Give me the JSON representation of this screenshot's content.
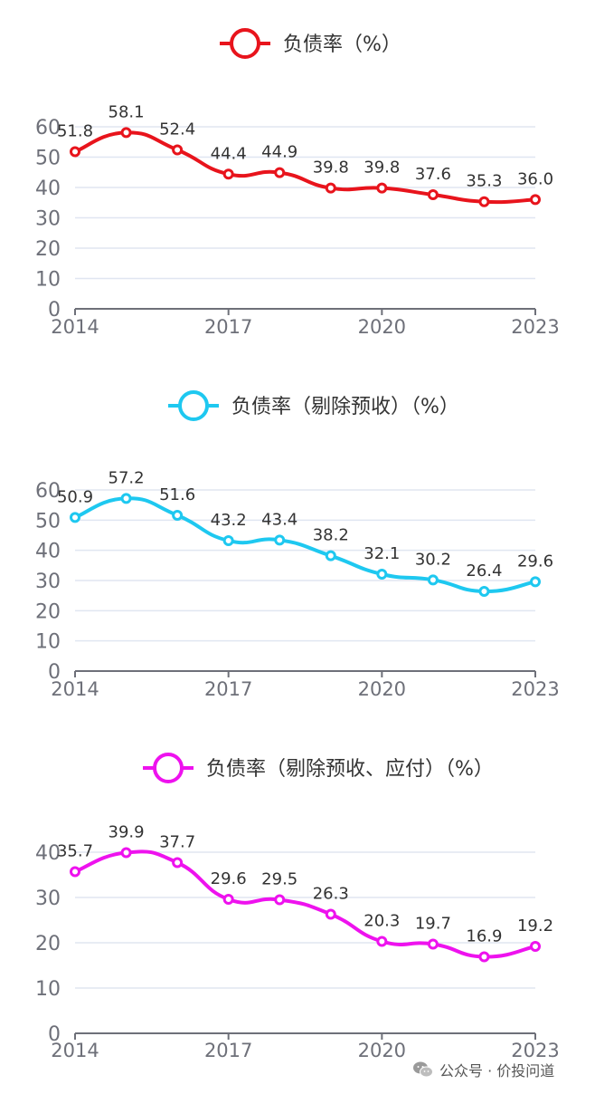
{
  "chart_data": [
    {
      "type": "line",
      "legend": "负债率（%）",
      "color": "#e8141c",
      "categories": [
        "2014",
        "2015",
        "2016",
        "2017",
        "2018",
        "2019",
        "2020",
        "2021",
        "2022",
        "2023"
      ],
      "x_tick_labels": [
        "2014",
        "2017",
        "2020",
        "2023"
      ],
      "values": [
        51.8,
        58.1,
        52.4,
        44.4,
        44.9,
        39.8,
        39.8,
        37.6,
        35.3,
        36.0
      ],
      "value_labels": [
        "51.8",
        "58.1",
        "52.4",
        "44.4",
        "44.9",
        "39.8",
        "39.8",
        "37.6",
        "35.3",
        "36.0"
      ],
      "y_ticks": [
        "0",
        "10",
        "20",
        "30",
        "40",
        "50",
        "60"
      ],
      "ylim": [
        0,
        60
      ],
      "smooth": true
    },
    {
      "type": "line",
      "legend": "负债率（剔除预收）（%）",
      "color": "#1ec8f0",
      "categories": [
        "2014",
        "2015",
        "2016",
        "2017",
        "2018",
        "2019",
        "2020",
        "2021",
        "2022",
        "2023"
      ],
      "x_tick_labels": [
        "2014",
        "2017",
        "2020",
        "2023"
      ],
      "values": [
        50.9,
        57.2,
        51.6,
        43.2,
        43.4,
        38.2,
        32.1,
        30.2,
        26.4,
        29.6
      ],
      "value_labels": [
        "50.9",
        "57.2",
        "51.6",
        "43.2",
        "43.4",
        "38.2",
        "32.1",
        "30.2",
        "26.4",
        "29.6"
      ],
      "y_ticks": [
        "0",
        "10",
        "20",
        "30",
        "40",
        "50",
        "60"
      ],
      "ylim": [
        0,
        60
      ],
      "smooth": true
    },
    {
      "type": "line",
      "legend": "负债率（剔除预收、应付）（%）",
      "color": "#ee12ee",
      "categories": [
        "2014",
        "2015",
        "2016",
        "2017",
        "2018",
        "2019",
        "2020",
        "2021",
        "2022",
        "2023"
      ],
      "x_tick_labels": [
        "2014",
        "2017",
        "2020",
        "2023"
      ],
      "values": [
        35.7,
        39.9,
        37.7,
        29.6,
        29.5,
        26.3,
        20.3,
        19.7,
        16.9,
        19.2
      ],
      "value_labels": [
        "35.7",
        "39.9",
        "37.7",
        "29.6",
        "29.5",
        "26.3",
        "20.3",
        "19.7",
        "16.9",
        "19.2"
      ],
      "y_ticks": [
        "0",
        "10",
        "20",
        "30",
        "40"
      ],
      "ylim": [
        0,
        40
      ],
      "smooth": true
    }
  ],
  "watermark": {
    "icon": "wechat-icon",
    "text": "公众号 · 价投问道"
  }
}
